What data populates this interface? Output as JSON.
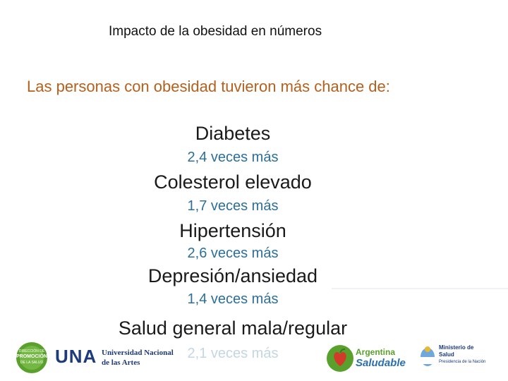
{
  "title": "Impacto de la obesidad en números",
  "subtitle": "Las personas con obesidad tuvieron más chance de:",
  "items": [
    {
      "label": "Diabetes",
      "value": "2,4 veces más"
    },
    {
      "label": "Colesterol elevado",
      "value": "1,7 veces más"
    },
    {
      "label": "Hipertensión",
      "value": "2,6 veces más"
    },
    {
      "label": "Depresión/ansiedad",
      "value": "1,4 veces más"
    },
    {
      "label": "Salud general mala/regular",
      "value": "2,1 veces más"
    }
  ],
  "footer": {
    "logo1_line1": "DIRECCIÓN DE",
    "logo1_line2": "PROMOCIÓN",
    "logo1_line3": "DE LA SALUD",
    "una_abbr": "UNA",
    "una_line1": "Universidad Nacional",
    "una_line2": "de las Artes",
    "argentina_line1": "Argentina",
    "argentina_line2": "Saludable",
    "ministerio_line1": "Ministerio de",
    "ministerio_line2": "Salud",
    "ministerio_line3": "Presidencia de la Nación"
  },
  "colors": {
    "subtitle": "#b4601e",
    "value": "#2c6f9a",
    "una_blue": "#1d3a7a",
    "green": "#5aa02c",
    "red": "#d23a2a"
  }
}
